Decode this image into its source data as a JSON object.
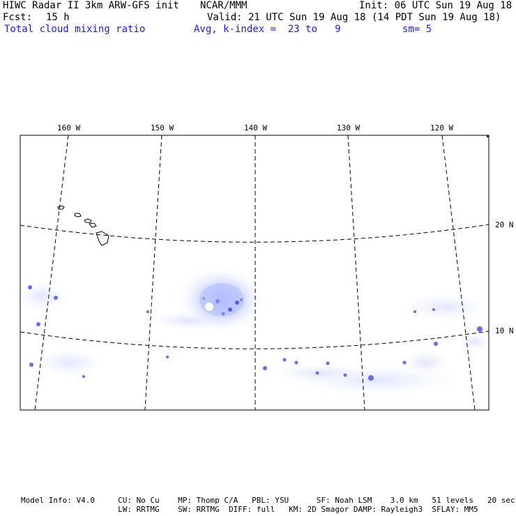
{
  "header": {
    "title": "HIWC Radar II 3km ARW-GFS init",
    "org": "NCAR/MMM",
    "init": "Init: 06 UTC Sun 19 Aug 18",
    "fcst_label": "Fcst:",
    "fcst_value": "15 h",
    "valid": "Valid: 21 UTC Sun 19 Aug 18 (14 PDT Sun 19 Aug 18)",
    "field": "Total cloud mixing ratio",
    "avg": "Avg, k-index =  23 to   9",
    "sm": "sm= 5"
  },
  "map": {
    "lon_labels": [
      "160 W",
      "150 W",
      "140 W",
      "130 W",
      "120 W"
    ],
    "lat_labels": [
      "20 N",
      "10 N"
    ],
    "cloud_color": "#5a5aee",
    "cloud_light_color": "#dfe6ff"
  },
  "footer": {
    "line1": "Model Info: V4.0     CU: No Cu    MP: Thomp C/A   PBL: YSU      SF: Noah LSM    3.0 km   51 levels   20 sec",
    "line2": "                     LW: RRTMG    SW: RRTMG  DIFF: full   KM: 2D Smagor DAMP: Rayleigh3  SFLAY: MM5"
  }
}
